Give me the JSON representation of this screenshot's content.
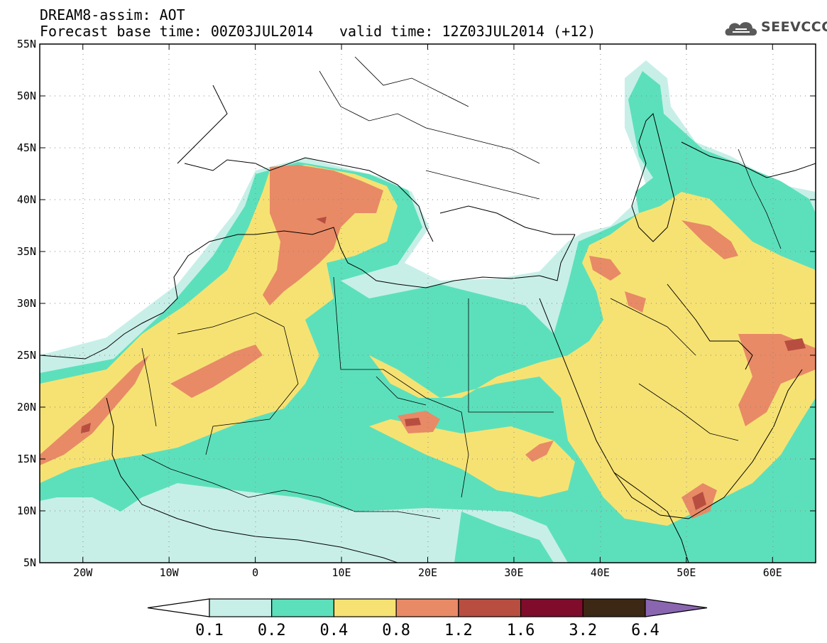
{
  "header": {
    "title": "DREAM8-assim: AOT",
    "base_time": "Forecast base time: 00Z03JUL2014",
    "valid_time": "valid time: 12Z03JUL2014 (+12)"
  },
  "logo": {
    "text": "SEEVCCC",
    "icon": "cloud-icon"
  },
  "map": {
    "lon_range": [
      -25,
      65
    ],
    "lat_range": [
      5,
      55
    ],
    "x_ticks": [
      "20W",
      "10W",
      "0",
      "10E",
      "20E",
      "30E",
      "40E",
      "50E",
      "60E"
    ],
    "x_tick_values": [
      -20,
      -10,
      0,
      10,
      20,
      30,
      40,
      50,
      60
    ],
    "y_ticks": [
      "5N",
      "10N",
      "15N",
      "20N",
      "25N",
      "30N",
      "35N",
      "40N",
      "45N",
      "50N",
      "55N"
    ],
    "y_tick_values": [
      5,
      10,
      15,
      20,
      25,
      30,
      35,
      40,
      45,
      50,
      55
    ],
    "grid": "dotted",
    "variable": "Aerosol optical thickness"
  },
  "colorbar": {
    "levels": [
      "0.1",
      "0.2",
      "0.4",
      "0.8",
      "1.2",
      "1.6",
      "3.2",
      "6.4"
    ],
    "colors": [
      "#ffffff",
      "#c7efe8",
      "#5ce0bb",
      "#f6e273",
      "#e88a66",
      "#b84e40",
      "#800c2c",
      "#3c2814",
      "#8a66b0"
    ]
  }
}
